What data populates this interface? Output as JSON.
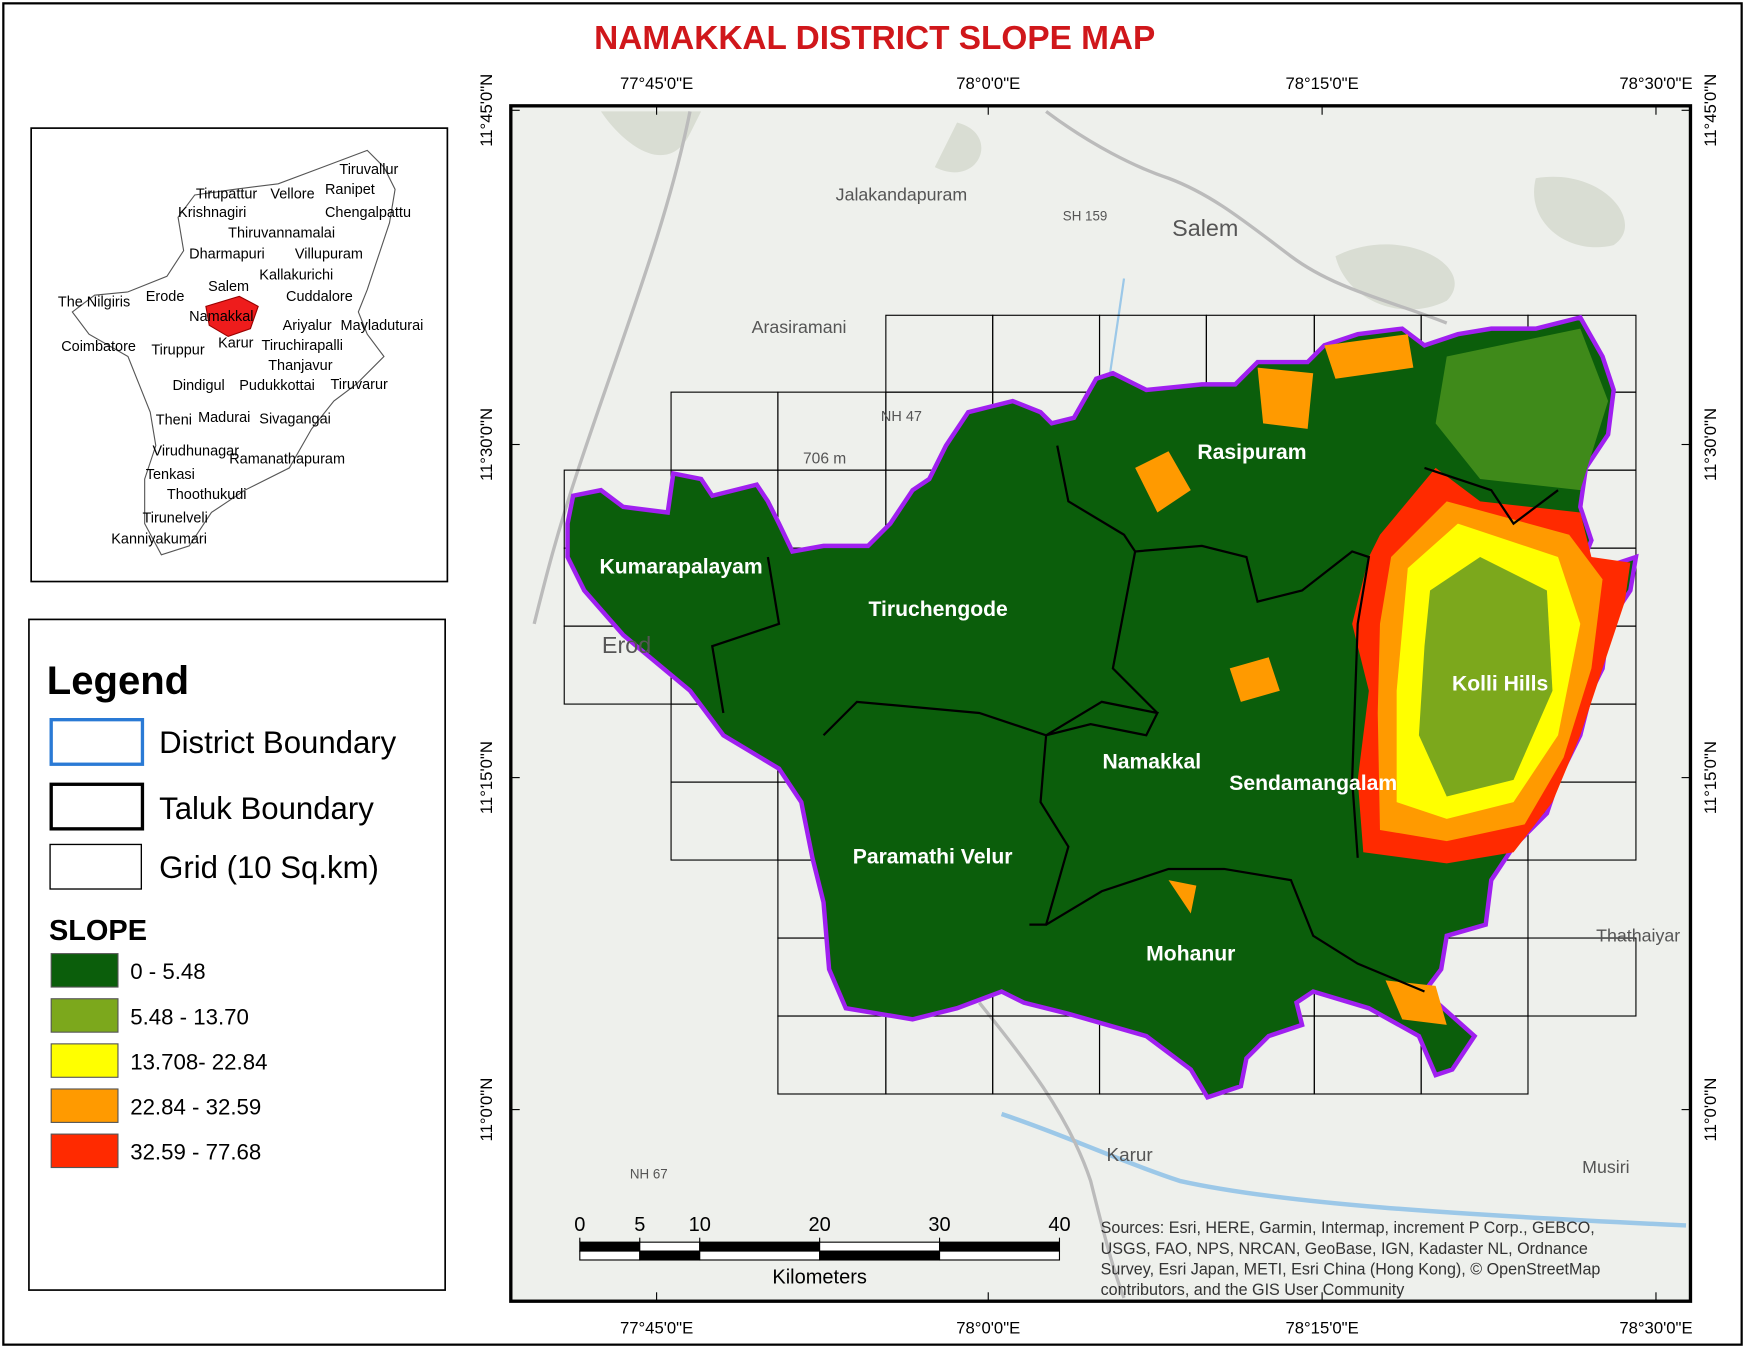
{
  "title": "NAMAKKAL DISTRICT SLOPE  MAP",
  "inset": {
    "districts": [
      "Tiruvallur",
      "Ranipet",
      "Tirupattur",
      "Vellore",
      "Krishnagiri",
      "Chengalpattu",
      "Thiruvannamalai",
      "Dharmapuri",
      "Villupuram",
      "Kallakurichi",
      "Salem",
      "The Nilgiris",
      "Erode",
      "Cuddalore",
      "Namakkal",
      "Ariyalur",
      "Mayladuturai",
      "Coimbatore",
      "Tiruppur",
      "Karur",
      "Tiruchirapalli",
      "Thanjavur",
      "Dindigul",
      "Pudukkottai",
      "Tiruvarur",
      "Theni",
      "Madurai",
      "Sivagangai",
      "Virudhunagar",
      "Ramanathapuram",
      "Tenkasi",
      "Thoothukudi",
      "Tirunelveli",
      "Kanniyakumari"
    ]
  },
  "legend": {
    "title": "Legend",
    "items": [
      "District Boundary",
      "Taluk Boundary",
      "Grid (10 Sq.km)"
    ],
    "slope_title": "SLOPE",
    "slope_classes": [
      {
        "label": "0 - 5.48",
        "color": "#0b5e0b"
      },
      {
        "label": "5.48 - 13.70",
        "color": "#7ca81c"
      },
      {
        "label": "13.708- 22.84",
        "color": "#ffff00"
      },
      {
        "label": "22.84 - 32.59",
        "color": "#ff9a00"
      },
      {
        "label": "32.59 - 77.68",
        "color": "#ff2a00"
      }
    ]
  },
  "map": {
    "longitudes": [
      "77°45'0\"E",
      "78°0'0\"E",
      "78°15'0\"E",
      "78°30'0\"E"
    ],
    "latitudes": [
      "11°45'0\"N",
      "11°30'0\"N",
      "11°15'0\"N",
      "11°0'0\"N"
    ],
    "taluks": [
      "Kumarapalayam",
      "Tiruchengode",
      "Rasipuram",
      "Kolli Hills",
      "Namakkal",
      "Sendamangalam",
      "Paramathi Velur",
      "Mohanur"
    ],
    "places": [
      "Jalakandapuram",
      "Salem",
      "Arasiramani",
      "Erod",
      "Karur",
      "Musiri",
      "Thathaiyar",
      "NH 47",
      "SH 159",
      "NH 67",
      "706 m"
    ],
    "sources": [
      "Sources: Esri, HERE, Garmin, Intermap, increment P Corp., GEBCO,",
      "USGS, FAO, NPS, NRCAN, GeoBase, IGN, Kadaster NL, Ordnance",
      "Survey, Esri Japan, METI, Esri China (Hong Kong), © OpenStreetMap",
      "contributors, and the GIS User Community"
    ]
  },
  "scale_bar": {
    "ticks": [
      0,
      5,
      10,
      20,
      30,
      40
    ],
    "unit": "Kilometers"
  }
}
